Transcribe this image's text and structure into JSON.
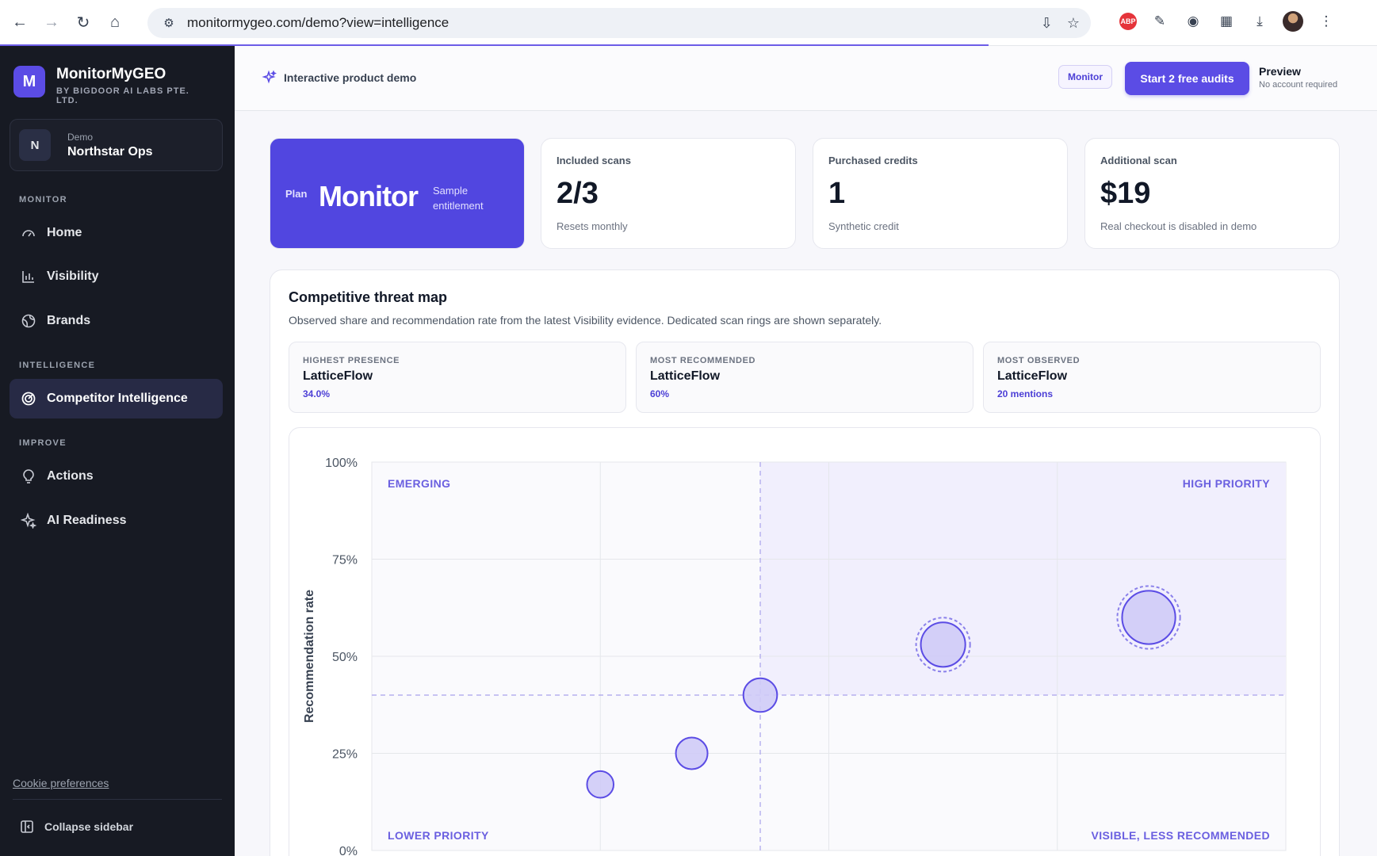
{
  "browser": {
    "url": "monitormygeo.com/demo?view=intelligence"
  },
  "sidebar": {
    "brand_initial": "M",
    "brand_name": "MonitorMyGEO",
    "brand_sub": "BY BIGDOOR AI LABS PTE. LTD.",
    "workspace": {
      "initial": "N",
      "label": "Demo",
      "name": "Northstar Ops"
    },
    "sections": [
      {
        "label": "MONITOR",
        "items": [
          "Home",
          "Visibility",
          "Brands"
        ]
      },
      {
        "label": "INTELLIGENCE",
        "items": [
          "Competitor Intelligence"
        ]
      },
      {
        "label": "IMPROVE",
        "items": [
          "Actions",
          "AI Readiness"
        ]
      }
    ],
    "active_item": "Competitor Intelligence",
    "cookie_label": "Cookie preferences",
    "collapse_label": "Collapse sidebar"
  },
  "header": {
    "demo_label": "Interactive product demo",
    "plan_chip": "Monitor",
    "cta_label": "Start 2 free audits",
    "preview_title": "Preview",
    "preview_sub": "No account required"
  },
  "plan_card": {
    "label": "Plan",
    "name": "Monitor",
    "sub": "Sample entitlement"
  },
  "stats": [
    {
      "label": "Included scans",
      "value": "2/3",
      "sub": "Resets monthly"
    },
    {
      "label": "Purchased credits",
      "value": "1",
      "sub": "Synthetic credit"
    },
    {
      "label": "Additional scan",
      "value": "$19",
      "sub": "Real checkout is disabled in demo"
    }
  ],
  "threat_map": {
    "title": "Competitive threat map",
    "description": "Observed share and recommendation rate from the latest Visibility evidence. Dedicated scan rings are shown separately.",
    "kpis": [
      {
        "label": "HIGHEST PRESENCE",
        "name": "LatticeFlow",
        "value": "34.0%"
      },
      {
        "label": "MOST RECOMMENDED",
        "name": "LatticeFlow",
        "value": "60%"
      },
      {
        "label": "MOST OBSERVED",
        "name": "LatticeFlow",
        "value": "20 mentions"
      }
    ]
  },
  "chart_data": {
    "type": "scatter",
    "ylabel": "Recommendation rate",
    "yticks": [
      "100%",
      "75%",
      "50%",
      "25%",
      "0%"
    ],
    "ylim": [
      0,
      100
    ],
    "xlim": [
      0,
      40
    ],
    "x_gridlines": [
      10,
      20,
      30
    ],
    "threshold_x": 17,
    "threshold_y": 40,
    "quadrants": {
      "top_left": "EMERGING",
      "top_right": "HIGH PRIORITY",
      "bottom_left": "LOWER PRIORITY",
      "bottom_right": "VISIBLE, LESS RECOMMENDED"
    },
    "points": [
      {
        "x": 10,
        "y": 17,
        "size": 2,
        "ring": false
      },
      {
        "x": 14,
        "y": 25,
        "size": 4,
        "ring": false
      },
      {
        "x": 17,
        "y": 40,
        "size": 5,
        "ring": false
      },
      {
        "x": 25,
        "y": 53,
        "size": 12,
        "ring": true
      },
      {
        "x": 34,
        "y": 60,
        "size": 20,
        "ring": true
      }
    ],
    "colors": {
      "accent": "#5b4ce5",
      "fill": "#cfcbf7",
      "quadrant": "#f1effd"
    }
  }
}
